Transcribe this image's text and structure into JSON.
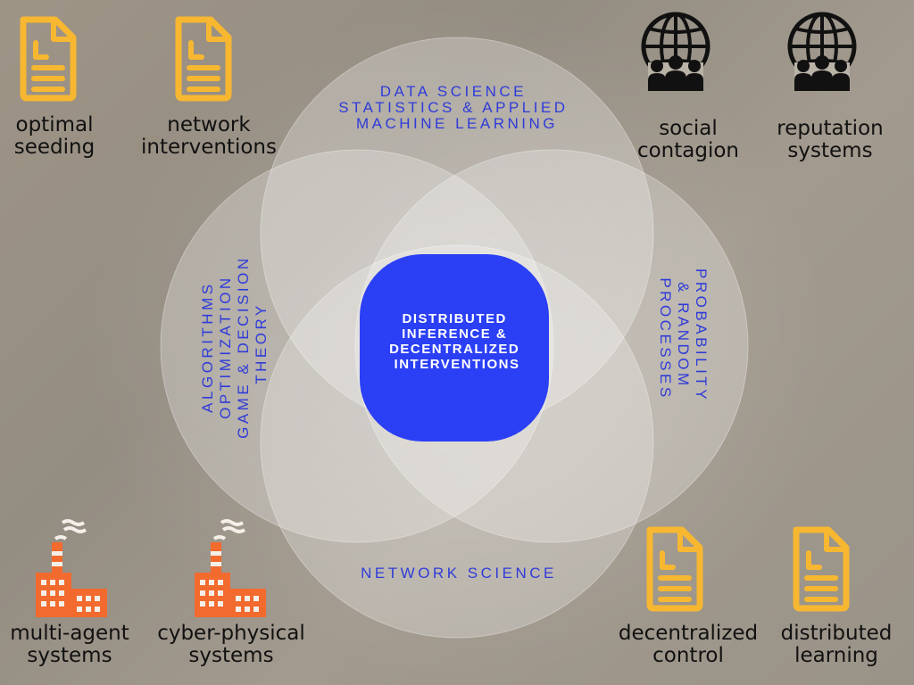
{
  "venn": {
    "top": [
      "DATA SCIENCE",
      "STATISTICS & APPLIED",
      "MACHINE LEARNING"
    ],
    "left": [
      "ALGORITHMS",
      "OPTIMIZATION",
      "GAME & DECISION",
      "THEORY"
    ],
    "right": [
      "PROBABILITY",
      "& RANDOM",
      "PROCESSES"
    ],
    "bottom": "NETWORK SCIENCE",
    "center": [
      "DISTRIBUTED",
      "INFERENCE &",
      "DECENTRALIZED",
      "INTERVENTIONS"
    ]
  },
  "labels": {
    "optimal_seeding": [
      "optimal",
      "seeding"
    ],
    "network_interventions": [
      "network",
      "interventions"
    ],
    "social_contagion": [
      "social",
      "contagion"
    ],
    "reputation_systems": [
      "reputation",
      "systems"
    ],
    "multi_agent_systems": [
      "multi-agent",
      "systems"
    ],
    "cyber_physical_systems": [
      "cyber-physical",
      "systems"
    ],
    "decentralized_control": [
      "decentralized",
      "control"
    ],
    "distributed_learning": [
      "distributed",
      "learning"
    ]
  },
  "colors": {
    "center_blue": "#2b3ff5",
    "document_icon": "#f7b731",
    "factory_icon": "#f26a2e",
    "globe_icon": "#111111",
    "venn_text": "#2f3bd9"
  },
  "icons": {
    "document": "document-icon",
    "globe_people": "globe-people-icon",
    "factory": "factory-icon"
  }
}
